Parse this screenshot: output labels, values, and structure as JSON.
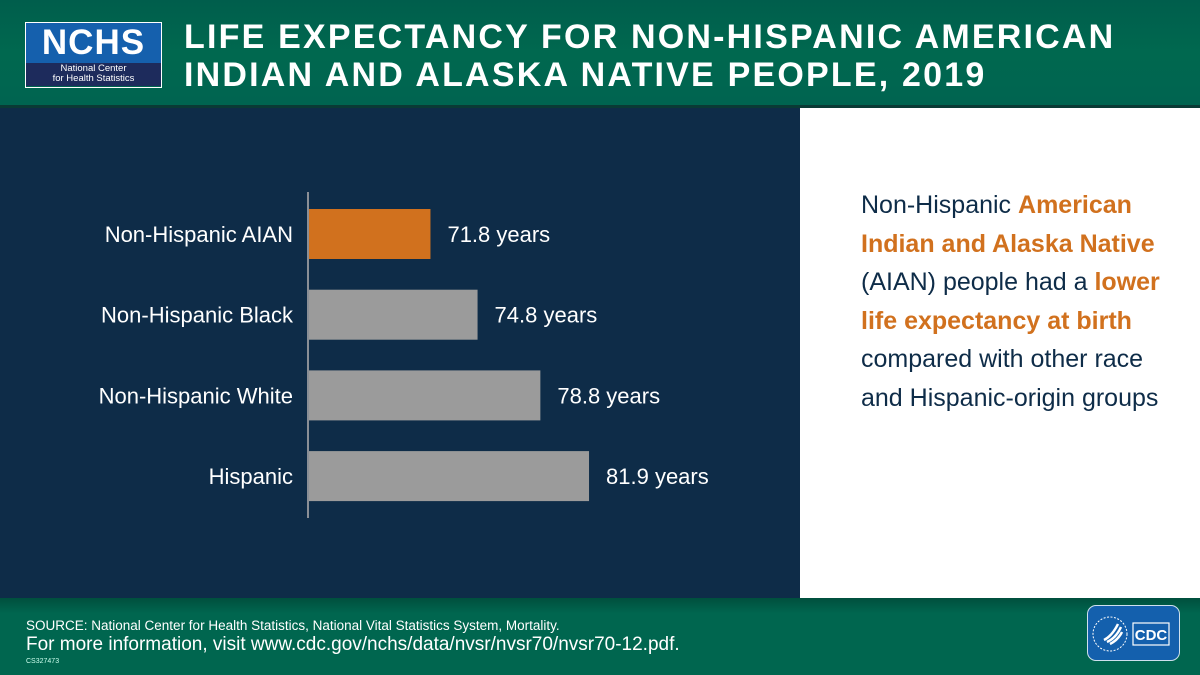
{
  "header": {
    "logo": {
      "abbr": "NCHS",
      "line1": "National Center",
      "line2": "for Health Statistics"
    },
    "title_line1": "LIFE EXPECTANCY FOR NON-HISPANIC AMERICAN",
    "title_line2": "INDIAN AND ALASKA NATIVE PEOPLE, 2019"
  },
  "chart_data": {
    "type": "bar",
    "orientation": "horizontal",
    "title": "",
    "xlabel": "",
    "ylabel": "",
    "categories": [
      "Non-Hispanic AIAN",
      "Non-Hispanic Black",
      "Non-Hispanic White",
      "Hispanic"
    ],
    "values": [
      71.8,
      74.8,
      78.8,
      81.9
    ],
    "data_labels": [
      "71.8 years",
      "74.8 years",
      "78.8 years",
      "81.9 years"
    ],
    "xlim": [
      64,
      90
    ],
    "grid": false,
    "colors": [
      "#d1711e",
      "#9b9b9b",
      "#9b9b9b",
      "#9b9b9b"
    ]
  },
  "message": {
    "p1": "Non-Hispanic ",
    "h1": "American Indian and Alaska Native",
    "p2": " (AIAN) people had a ",
    "h2": "lower life expectancy at birth",
    "p3": " compared with other race and Hispanic-origin groups"
  },
  "footer": {
    "source": "SOURCE: National Center for Health Statistics, National Vital Statistics System, Mortality.",
    "more": "For more information, visit www.cdc.gov/nchs/data/nvsr/nvsr70/nvsr70-12.pdf.",
    "code": "CS327473",
    "cdc_logo": "CDC"
  }
}
